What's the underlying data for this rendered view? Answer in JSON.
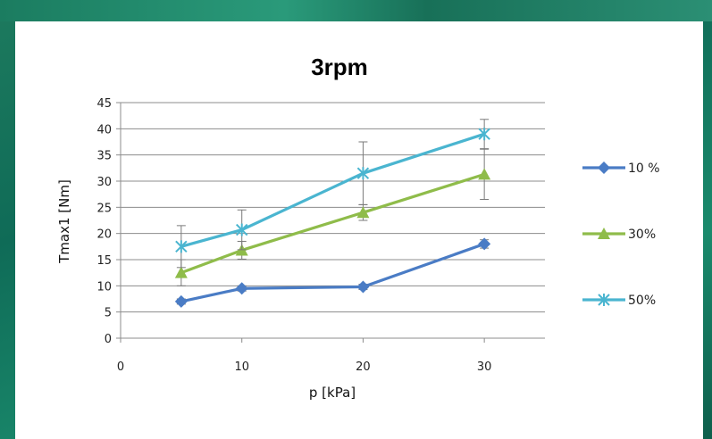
{
  "chart_data": {
    "type": "line",
    "title": "3rpm",
    "xlabel": "p [kPa]",
    "ylabel": "Tmax1 [Nm]",
    "xlim": [
      0,
      35
    ],
    "ylim": [
      0,
      45
    ],
    "x_ticks": [
      "0",
      "10",
      "20",
      "30"
    ],
    "y_ticks": [
      "0",
      "5",
      "10",
      "15",
      "20",
      "25",
      "30",
      "35",
      "40",
      "45"
    ],
    "grid": "horizontal",
    "legend_position": "right",
    "x": [
      5,
      10,
      20,
      30
    ],
    "series": [
      {
        "name": "10 %",
        "color": "#4a7cc5",
        "marker": "diamond",
        "values": [
          7.0,
          9.5,
          9.8,
          18.0
        ],
        "error": [
          0.5,
          0.5,
          0.5,
          0.8
        ]
      },
      {
        "name": "30%",
        "color": "#8fbc4a",
        "marker": "triangle",
        "values": [
          12.5,
          16.8,
          24.0,
          31.3
        ],
        "error": [
          2.5,
          1.7,
          1.5,
          4.8
        ]
      },
      {
        "name": "50%",
        "color": "#4ab5d0",
        "marker": "star",
        "values": [
          17.5,
          20.7,
          31.5,
          39.0
        ],
        "error": [
          4.0,
          3.8,
          6.0,
          2.8
        ]
      }
    ]
  }
}
